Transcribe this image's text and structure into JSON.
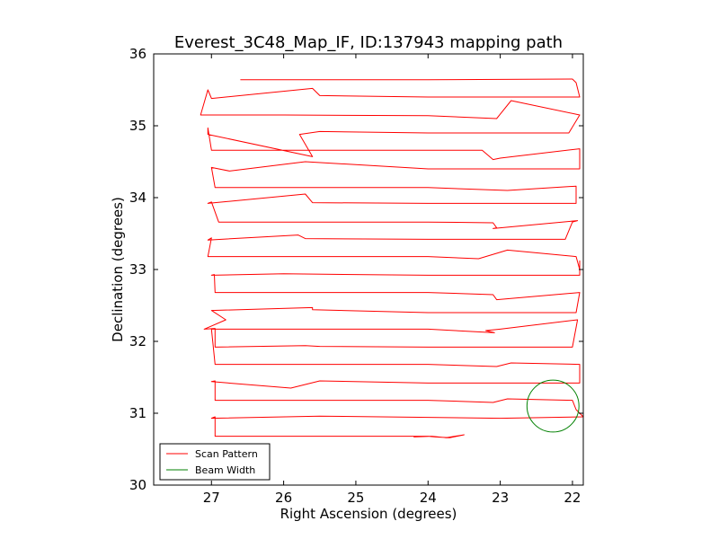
{
  "chart_data": {
    "type": "line",
    "title": "Everest_3C48_Map_IF, ID:137943 mapping path",
    "xlabel": "Right Ascension (degrees)",
    "ylabel": "Declination (degrees)",
    "xlim": [
      27.8,
      21.85
    ],
    "ylim": [
      30,
      36
    ],
    "x_ticks": [
      27,
      26,
      25,
      24,
      23,
      22
    ],
    "y_ticks": [
      30,
      31,
      32,
      33,
      34,
      35,
      36
    ],
    "x_tick_labels": [
      "27",
      "26",
      "25",
      "24",
      "23",
      "22"
    ],
    "y_tick_labels": [
      "30",
      "31",
      "32",
      "33",
      "34",
      "35",
      "36"
    ],
    "legend": {
      "placement": "lower-left",
      "entries": [
        {
          "label": "Scan Pattern",
          "color": "#ff0000"
        },
        {
          "label": "Beam Width",
          "color": "#008000"
        }
      ]
    },
    "series": [
      {
        "name": "Scan Pattern",
        "color": "#ff0000",
        "points": [
          [
            26.6,
            35.64
          ],
          [
            24.0,
            35.64
          ],
          [
            22.0,
            35.65
          ],
          [
            21.95,
            35.6
          ],
          [
            21.9,
            35.4
          ],
          [
            23.0,
            35.4
          ],
          [
            24.0,
            35.4
          ],
          [
            25.5,
            35.42
          ],
          [
            25.6,
            35.52
          ],
          [
            27.0,
            35.38
          ],
          [
            27.05,
            35.5
          ],
          [
            27.15,
            35.15
          ],
          [
            26.0,
            35.15
          ],
          [
            24.0,
            35.14
          ],
          [
            23.05,
            35.1
          ],
          [
            22.85,
            35.35
          ],
          [
            21.9,
            35.15
          ],
          [
            22.05,
            34.9
          ],
          [
            24.0,
            34.9
          ],
          [
            25.5,
            34.92
          ],
          [
            25.78,
            34.88
          ],
          [
            25.6,
            34.57
          ],
          [
            27.05,
            34.88
          ],
          [
            27.05,
            34.97
          ],
          [
            27.0,
            34.66
          ],
          [
            24.5,
            34.66
          ],
          [
            23.25,
            34.66
          ],
          [
            23.1,
            34.53
          ],
          [
            23.0,
            34.55
          ],
          [
            21.9,
            34.68
          ],
          [
            21.9,
            34.4
          ],
          [
            24.0,
            34.4
          ],
          [
            25.7,
            34.5
          ],
          [
            26.75,
            34.37
          ],
          [
            27.0,
            34.42
          ],
          [
            26.95,
            34.14
          ],
          [
            24.0,
            34.14
          ],
          [
            22.9,
            34.1
          ],
          [
            21.95,
            34.16
          ],
          [
            21.95,
            33.92
          ],
          [
            24.0,
            33.92
          ],
          [
            25.6,
            33.93
          ],
          [
            25.7,
            34.05
          ],
          [
            27.05,
            33.92
          ],
          [
            27.0,
            33.94
          ],
          [
            26.9,
            33.66
          ],
          [
            24.0,
            33.66
          ],
          [
            23.1,
            33.65
          ],
          [
            23.05,
            33.58
          ],
          [
            23.1,
            33.57
          ],
          [
            21.93,
            33.68
          ],
          [
            22.0,
            33.66
          ],
          [
            22.1,
            33.42
          ],
          [
            24.0,
            33.42
          ],
          [
            25.7,
            33.43
          ],
          [
            25.8,
            33.48
          ],
          [
            27.05,
            33.41
          ],
          [
            27.0,
            33.44
          ],
          [
            27.05,
            33.18
          ],
          [
            24.0,
            33.18
          ],
          [
            23.3,
            33.15
          ],
          [
            22.9,
            33.27
          ],
          [
            21.95,
            33.18
          ],
          [
            21.9,
            33.0
          ],
          [
            21.9,
            33.12
          ],
          [
            21.9,
            32.92
          ],
          [
            24.0,
            32.92
          ],
          [
            26.0,
            32.94
          ],
          [
            27.0,
            32.92
          ],
          [
            26.96,
            32.93
          ],
          [
            26.95,
            32.68
          ],
          [
            24.0,
            32.68
          ],
          [
            23.1,
            32.65
          ],
          [
            23.05,
            32.58
          ],
          [
            21.9,
            32.68
          ],
          [
            21.95,
            32.4
          ],
          [
            24.0,
            32.4
          ],
          [
            25.6,
            32.44
          ],
          [
            25.6,
            32.47
          ],
          [
            27.0,
            32.43
          ],
          [
            26.8,
            32.3
          ],
          [
            27.1,
            32.17
          ],
          [
            26.95,
            32.18
          ],
          [
            26.95,
            31.92
          ],
          [
            25.7,
            31.94
          ],
          [
            25.5,
            31.93
          ],
          [
            24.0,
            31.92
          ],
          [
            22.0,
            31.92
          ],
          [
            21.93,
            32.3
          ],
          [
            23.0,
            32.17
          ],
          [
            23.2,
            32.15
          ],
          [
            23.08,
            32.12
          ],
          [
            24.0,
            32.17
          ],
          [
            25.5,
            32.17
          ],
          [
            27.0,
            32.17
          ],
          [
            26.95,
            31.68
          ],
          [
            24.0,
            31.68
          ],
          [
            23.05,
            31.65
          ],
          [
            22.85,
            31.7
          ],
          [
            21.9,
            31.68
          ],
          [
            21.9,
            31.42
          ],
          [
            22.85,
            31.42
          ],
          [
            24.0,
            31.42
          ],
          [
            25.5,
            31.45
          ],
          [
            25.9,
            31.35
          ],
          [
            27.0,
            31.44
          ],
          [
            26.95,
            31.45
          ],
          [
            26.95,
            31.18
          ],
          [
            24.0,
            31.18
          ],
          [
            23.1,
            31.15
          ],
          [
            22.9,
            31.2
          ],
          [
            22.0,
            31.18
          ],
          [
            21.95,
            31.05
          ],
          [
            21.85,
            30.95
          ],
          [
            23.0,
            30.93
          ],
          [
            25.5,
            30.96
          ],
          [
            27.0,
            30.93
          ],
          [
            26.95,
            30.95
          ],
          [
            26.95,
            30.68
          ],
          [
            24.0,
            30.68
          ],
          [
            23.9,
            30.67
          ],
          [
            23.7,
            30.66
          ],
          [
            23.5,
            30.7
          ],
          [
            23.75,
            30.66
          ],
          [
            23.95,
            30.68
          ],
          [
            24.2,
            30.67
          ]
        ]
      }
    ],
    "beam": {
      "name": "Beam Width",
      "color": "#008000",
      "center": [
        22.27,
        31.1
      ],
      "radius_deg": 0.36
    }
  }
}
